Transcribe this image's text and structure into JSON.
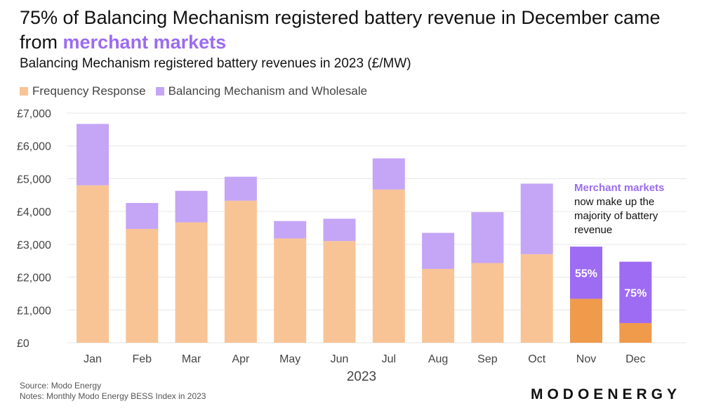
{
  "title_part1": "75% of Balancing Mechanism registered battery revenue in December came from ",
  "title_highlight": "merchant markets",
  "subtitle": "Balancing Mechanism registered battery revenues in 2023 (£/MW)",
  "colors": {
    "freq": "#f8c496",
    "bm": "#c4a5f6",
    "freq_highlight": "#f09a4c",
    "bm_highlight": "#9d6cf2",
    "accent": "#9b6cf0",
    "grid": "#e6e6e6"
  },
  "chart_data": {
    "type": "bar",
    "stacked": true,
    "categories": [
      "Jan",
      "Feb",
      "Mar",
      "Apr",
      "May",
      "Jun",
      "Jul",
      "Aug",
      "Sep",
      "Oct",
      "Nov",
      "Dec"
    ],
    "series": [
      {
        "name": "Frequency Response",
        "values": [
          4800,
          3470,
          3670,
          4330,
          3180,
          3100,
          4670,
          2250,
          2430,
          2700,
          1340,
          600
        ]
      },
      {
        "name": "Balancing Mechanism and Wholesale",
        "values": [
          1870,
          790,
          960,
          730,
          530,
          680,
          950,
          1100,
          1550,
          2150,
          1590,
          1870
        ]
      }
    ],
    "highlight_categories": [
      "Nov",
      "Dec"
    ],
    "bar_labels": [
      {
        "category": "Nov",
        "text": "55%"
      },
      {
        "category": "Dec",
        "text": "75%"
      }
    ],
    "yticks": [
      0,
      1000,
      2000,
      3000,
      4000,
      5000,
      6000,
      7000
    ],
    "ytick_labels": [
      "£0",
      "£1,000",
      "£2,000",
      "£3,000",
      "£4,000",
      "£5,000",
      "£6,000",
      "£7,000"
    ],
    "ylim": [
      0,
      7000
    ],
    "xlabel": "2023",
    "ylabel": "",
    "grid": true,
    "legend": "top-left",
    "annotation": {
      "highlight": "Merchant markets",
      "lines": [
        "now make up the",
        "majority of battery",
        "revenue"
      ]
    }
  },
  "footer": {
    "source": "Source: Modo Energy",
    "notes": "Notes: Monthly Modo Energy BESS Index in 2023"
  },
  "logo": "MODOENERGY"
}
